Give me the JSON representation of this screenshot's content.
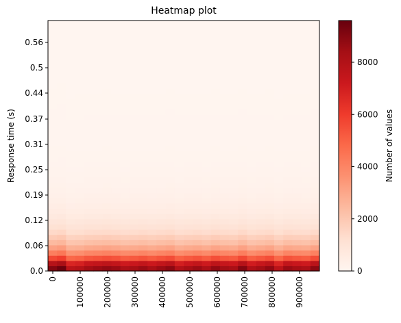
{
  "chart_data": {
    "type": "heatmap",
    "title": "Heatmap plot",
    "xlabel": "",
    "ylabel": "Response time (s)",
    "colorbar_label": "Number of values",
    "colormap": "Reds",
    "color_range": [
      0,
      9600
    ],
    "colorbar_ticks": [
      0,
      2000,
      4000,
      6000,
      8000
    ],
    "colorbar_tick_labels": [
      "0",
      "2000",
      "4000",
      "6000",
      "8000"
    ],
    "x_tick_labels": [
      "0",
      "100000",
      "200000",
      "300000",
      "400000",
      "500000",
      "600000",
      "700000",
      "800000",
      "900000"
    ],
    "y_tick_labels": [
      "0.0",
      "0.06",
      "0.12",
      "0.19",
      "0.25",
      "0.31",
      "0.37",
      "0.44",
      "0.5",
      "0.56"
    ],
    "row_profile": [
      8600,
      7500,
      5400,
      4000,
      3000,
      2300,
      1800,
      1350,
      1050,
      850,
      650,
      520,
      420,
      330,
      270,
      220,
      180,
      150,
      125,
      105,
      90,
      78,
      68,
      60,
      53,
      47,
      42,
      38,
      34,
      31,
      28,
      26,
      24,
      22,
      20,
      19,
      18,
      17,
      16,
      15,
      14,
      13,
      12,
      11,
      10,
      10,
      9,
      9
    ],
    "column_variation": [
      1.05,
      1.1,
      0.9,
      0.92,
      0.98,
      1.0,
      1.02,
      1.0,
      0.95,
      0.97,
      1.0,
      0.96,
      1.0,
      1.03,
      0.93,
      0.97,
      1.0,
      0.95,
      1.02,
      0.98,
      0.96,
      1.05,
      0.94,
      0.98,
      1.02,
      0.9,
      1.0,
      0.97,
      0.95,
      1.03
    ]
  }
}
